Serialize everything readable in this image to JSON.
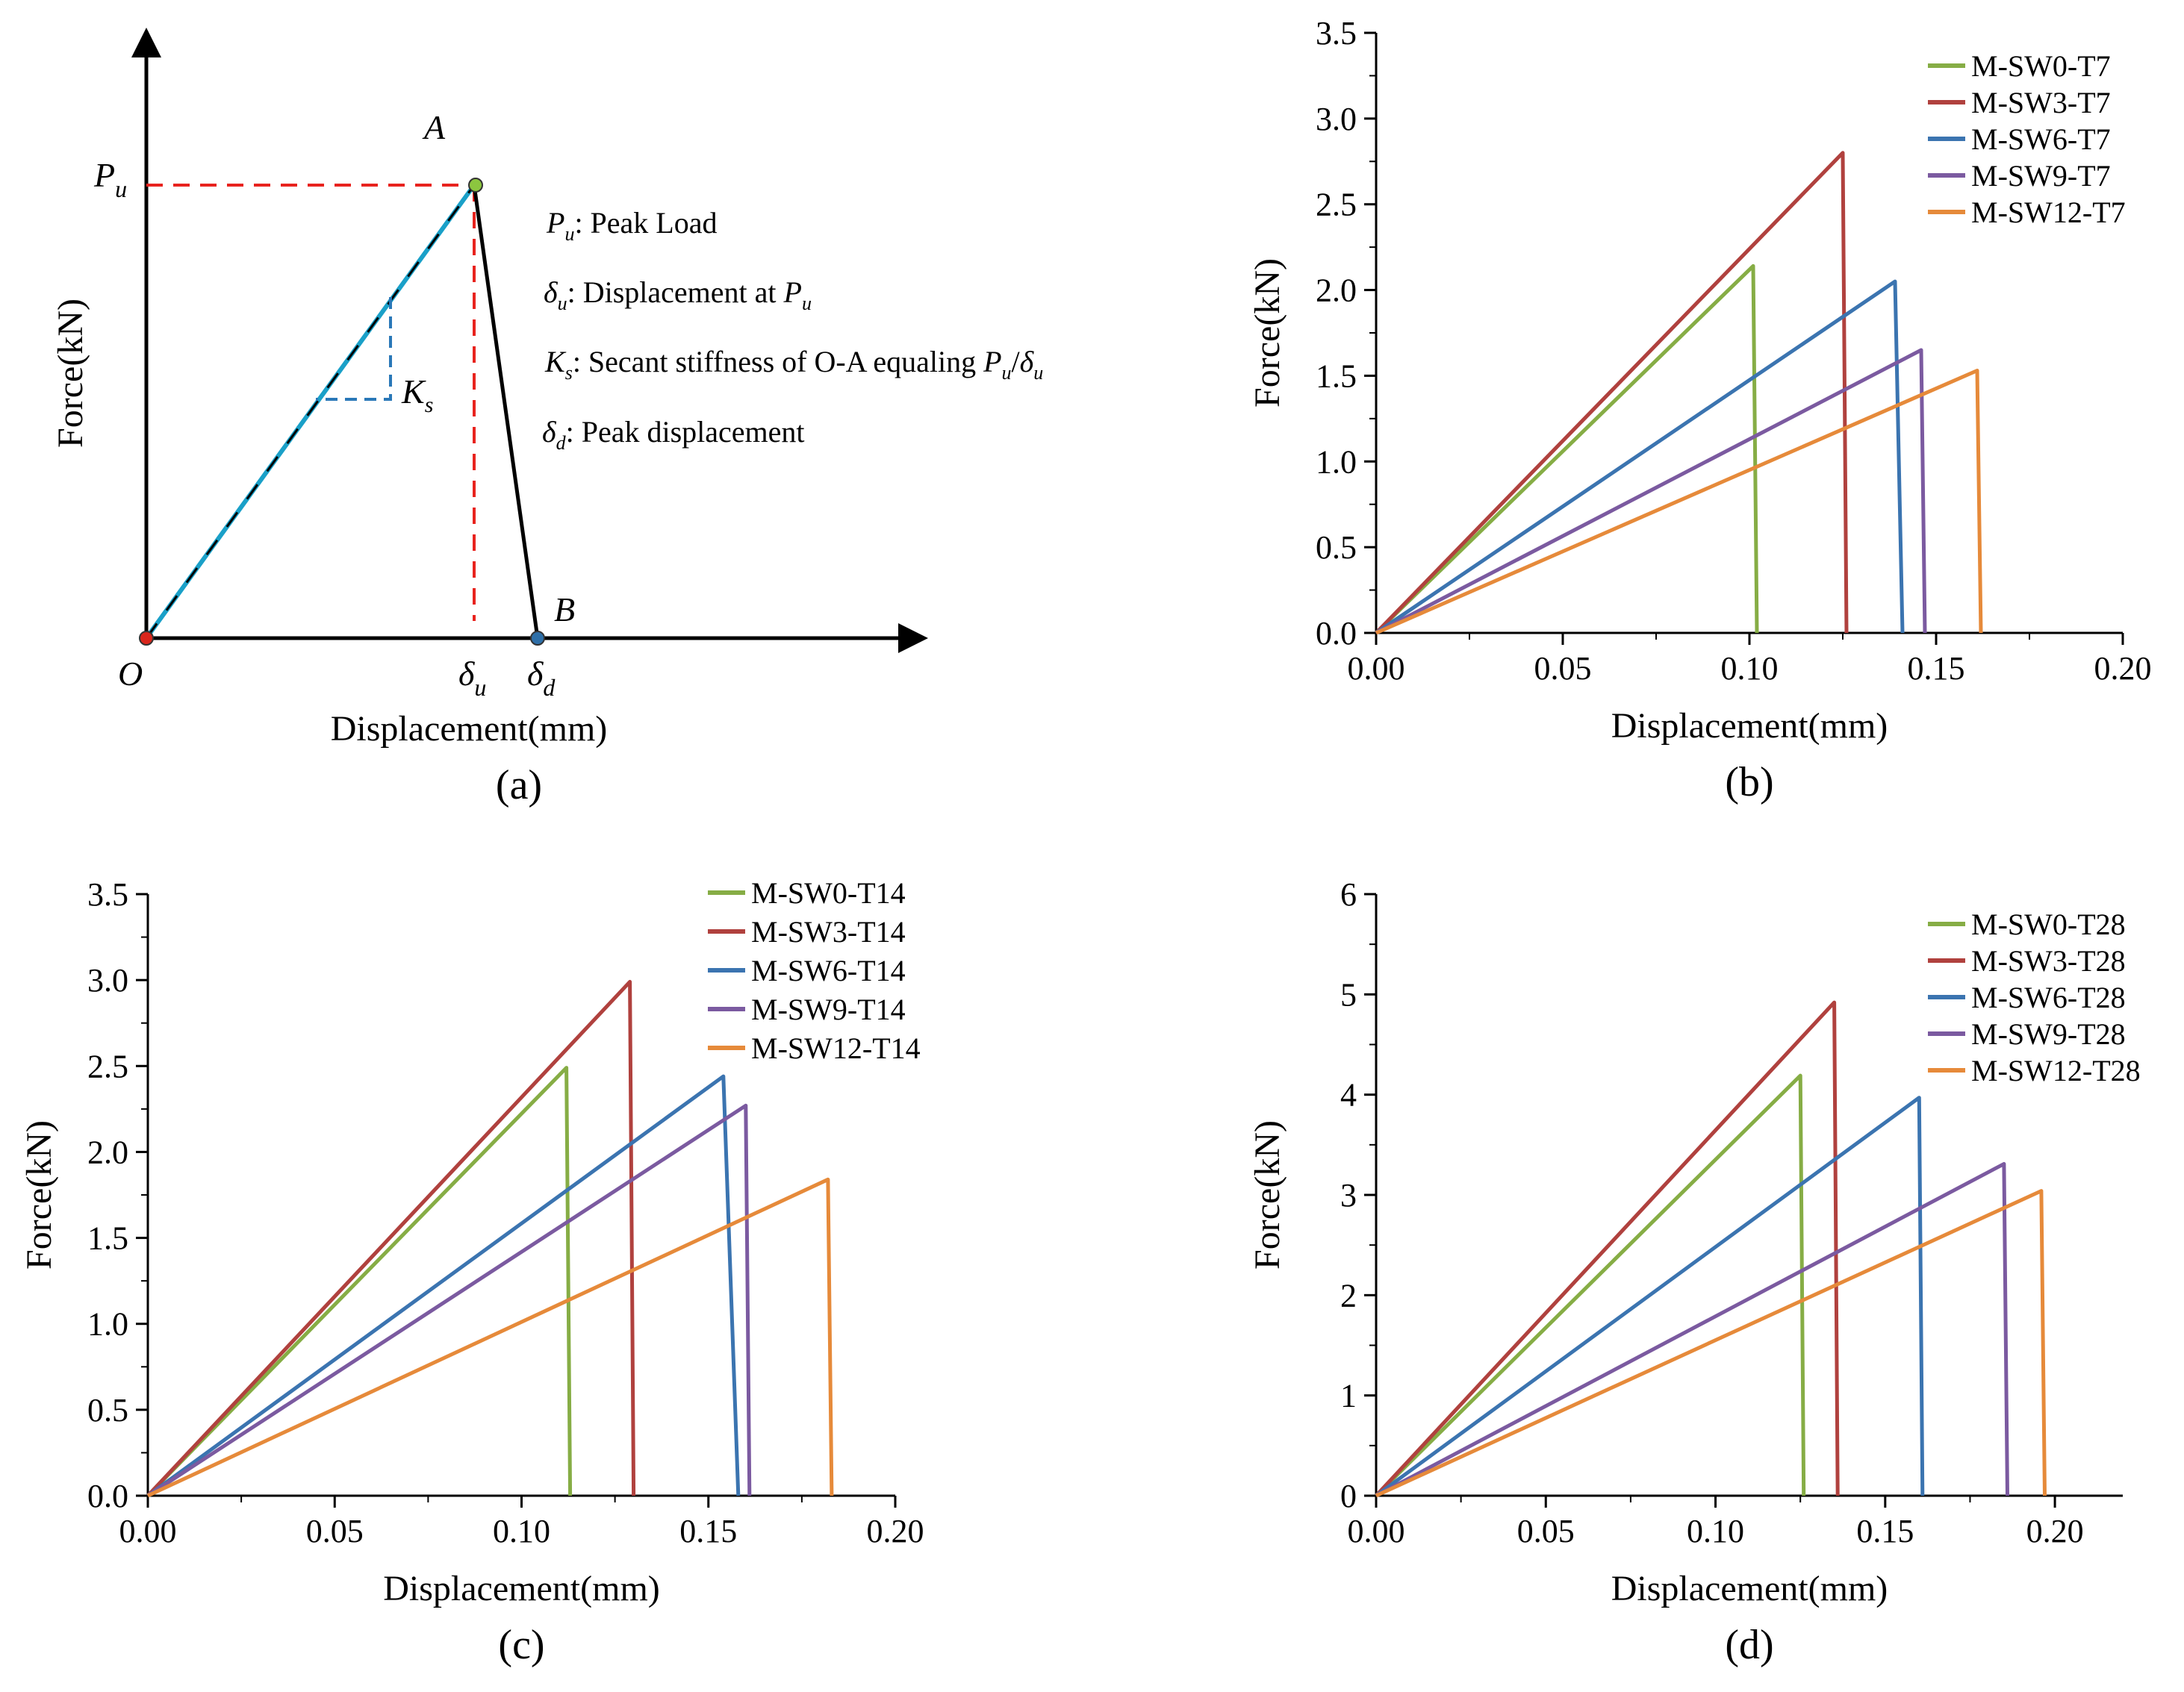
{
  "colors": {
    "green": "#86AD45",
    "red": "#B0413E",
    "blue": "#3B74B0",
    "purple": "#7B5AA0",
    "orange": "#E68A3A",
    "cyan": "#1AA0C8",
    "dashed_red": "#E8231E",
    "dashed_blue": "#2A78B8",
    "point_O": "#D9261C",
    "point_A": "#8CC63F",
    "point_B": "#2E6FA8"
  },
  "schematic": {
    "panel_label": "(a)",
    "xlabel": "Displacement(mm)",
    "ylabel": "Force(kN)",
    "point_O": "O",
    "point_A": "A",
    "point_B": "B",
    "Pu_main": "P",
    "Pu_sub": "u",
    "du_main": "δ",
    "du_sub": "u",
    "dd_main": "δ",
    "dd_sub": "d",
    "Ks_main": "K",
    "Ks_sub": "s",
    "legend1_sym": "P",
    "legend1_sub": "u",
    "legend1_text": ": Peak Load",
    "legend2_sym": "δ",
    "legend2_sub": "u",
    "legend2_text": ": Displacement at ",
    "legend2_end": "P",
    "legend2_end_sub": "u",
    "legend3_sym": "K",
    "legend3_sub": "s",
    "legend3_text": ": Secant stiffness of O-A equaling ",
    "legend3_a": "P",
    "legend3_a_sub": "u",
    "legend3_slash": "/",
    "legend3_b": "δ",
    "legend3_b_sub": "u",
    "legend4_sym": "δ",
    "legend4_sub": "d",
    "legend4_text": ": Peak displacement"
  },
  "chart_data": [
    {
      "type": "line",
      "panel_label": "(b)",
      "xlabel": "Displacement(mm)",
      "ylabel": "Force(kN)",
      "xlim": [
        0,
        0.2
      ],
      "ylim": [
        0,
        3.5
      ],
      "xticks": [
        "0.00",
        "0.05",
        "0.10",
        "0.15",
        "0.20"
      ],
      "yticks": [
        "0.0",
        "0.5",
        "1.0",
        "1.5",
        "2.0",
        "2.5",
        "3.0",
        "3.5"
      ],
      "legend_position": "top-right",
      "series": [
        {
          "name": "M-SW0-T7",
          "color": "#86AD45",
          "x": [
            0,
            0.101,
            0.102
          ],
          "y": [
            0,
            2.14,
            0
          ]
        },
        {
          "name": "M-SW3-T7",
          "color": "#B0413E",
          "x": [
            0,
            0.125,
            0.126
          ],
          "y": [
            0,
            2.8,
            0
          ]
        },
        {
          "name": "M-SW6-T7",
          "color": "#3B74B0",
          "x": [
            0,
            0.139,
            0.141
          ],
          "y": [
            0,
            2.05,
            0
          ]
        },
        {
          "name": "M-SW9-T7",
          "color": "#7B5AA0",
          "x": [
            0,
            0.146,
            0.147
          ],
          "y": [
            0,
            1.65,
            0
          ]
        },
        {
          "name": "M-SW12-T7",
          "color": "#E68A3A",
          "x": [
            0,
            0.161,
            0.162
          ],
          "y": [
            0,
            1.53,
            0
          ]
        }
      ]
    },
    {
      "type": "line",
      "panel_label": "(c)",
      "xlabel": "Displacement(mm)",
      "ylabel": "Force(kN)",
      "xlim": [
        0,
        0.2
      ],
      "ylim": [
        0,
        3.5
      ],
      "xticks": [
        "0.00",
        "0.05",
        "0.10",
        "0.15",
        "0.20"
      ],
      "yticks": [
        "0.0",
        "0.5",
        "1.0",
        "1.5",
        "2.0",
        "2.5",
        "3.0",
        "3.5"
      ],
      "legend_position": "top-right",
      "series": [
        {
          "name": "M-SW0-T14",
          "color": "#86AD45",
          "x": [
            0,
            0.112,
            0.113
          ],
          "y": [
            0,
            2.49,
            0
          ]
        },
        {
          "name": "M-SW3-T14",
          "color": "#B0413E",
          "x": [
            0,
            0.129,
            0.13
          ],
          "y": [
            0,
            2.99,
            0
          ]
        },
        {
          "name": "M-SW6-T14",
          "color": "#3B74B0",
          "x": [
            0,
            0.154,
            0.158
          ],
          "y": [
            0,
            2.44,
            0
          ]
        },
        {
          "name": "M-SW9-T14",
          "color": "#7B5AA0",
          "x": [
            0,
            0.16,
            0.161
          ],
          "y": [
            0,
            2.27,
            0
          ]
        },
        {
          "name": "M-SW12-T14",
          "color": "#E68A3A",
          "x": [
            0,
            0.182,
            0.183
          ],
          "y": [
            0,
            1.84,
            0
          ]
        }
      ]
    },
    {
      "type": "line",
      "panel_label": "(d)",
      "xlabel": "Displacement(mm)",
      "ylabel": "Force(kN)",
      "xlim": [
        0,
        0.22
      ],
      "ylim": [
        0,
        6
      ],
      "xticks": [
        "0.00",
        "0.05",
        "0.10",
        "0.15",
        "0.20"
      ],
      "yticks": [
        "0",
        "1",
        "2",
        "3",
        "4",
        "5",
        "6"
      ],
      "legend_position": "top-right",
      "series": [
        {
          "name": "M-SW0-T28",
          "color": "#86AD45",
          "x": [
            0,
            0.125,
            0.126
          ],
          "y": [
            0,
            4.19,
            0
          ]
        },
        {
          "name": "M-SW3-T28",
          "color": "#B0413E",
          "x": [
            0,
            0.135,
            0.136
          ],
          "y": [
            0,
            4.92,
            0
          ]
        },
        {
          "name": "M-SW6-T28",
          "color": "#3B74B0",
          "x": [
            0,
            0.16,
            0.161
          ],
          "y": [
            0,
            3.97,
            0
          ]
        },
        {
          "name": "M-SW9-T28",
          "color": "#7B5AA0",
          "x": [
            0,
            0.185,
            0.186
          ],
          "y": [
            0,
            3.31,
            0
          ]
        },
        {
          "name": "M-SW12-T28",
          "color": "#E68A3A",
          "x": [
            0,
            0.196,
            0.197
          ],
          "y": [
            0,
            3.04,
            0
          ]
        }
      ]
    }
  ]
}
